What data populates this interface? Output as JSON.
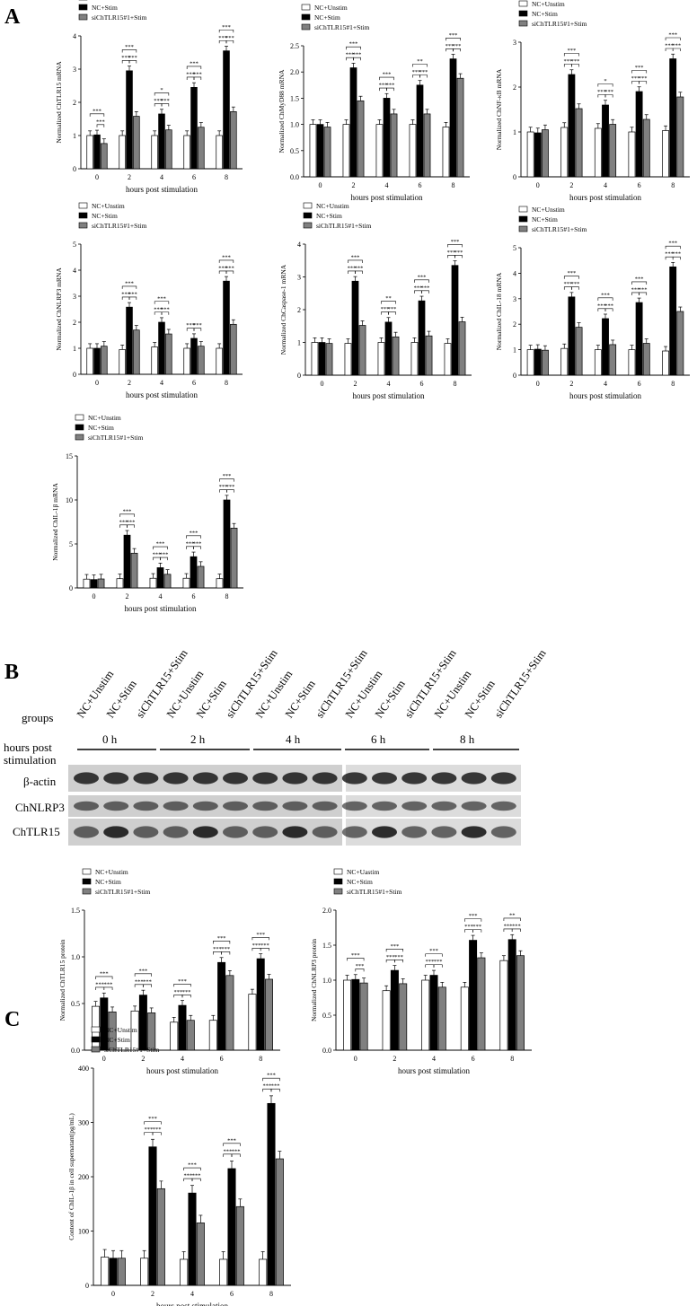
{
  "panels": {
    "a": "A",
    "b": "B",
    "c": "C"
  },
  "legend_labels": [
    "NC+Unstim",
    "NC+Stim",
    "siChTLR15#1+Stim"
  ],
  "colors": {
    "unstim": "#ffffff",
    "stim": "#000000",
    "si": "#808080"
  },
  "chart_data": [
    {
      "type": "bar",
      "ylabel": "Normalized ChTLR15 mRNA",
      "xlabel": "hours post stimulation",
      "categories": [
        "0",
        "2",
        "4",
        "6",
        "8"
      ],
      "ylim": [
        0,
        4
      ],
      "yticks": [
        0,
        1,
        2,
        3,
        4
      ],
      "series": [
        {
          "name": "NC+Unstim",
          "values": [
            1.0,
            1.0,
            1.0,
            1.0,
            1.0
          ]
        },
        {
          "name": "NC+Stim",
          "values": [
            1.02,
            2.95,
            1.65,
            2.45,
            3.55
          ]
        },
        {
          "name": "siChTLR15#1+Stim",
          "values": [
            0.76,
            1.58,
            1.17,
            1.25,
            1.72
          ]
        }
      ],
      "significance": [
        {
          "top": "***",
          "left": "",
          "right": "***"
        },
        {
          "top": "***",
          "left": "***",
          "right": "***"
        },
        {
          "top": "*",
          "left": "***",
          "right": "***"
        },
        {
          "top": "***",
          "left": "***",
          "right": "***"
        },
        {
          "top": "***",
          "left": "***",
          "right": "***"
        }
      ]
    },
    {
      "type": "bar",
      "ylabel": "Normalized ChMyD88 mRNA",
      "xlabel": "hours post stimulation",
      "categories": [
        "0",
        "2",
        "4",
        "6",
        "8"
      ],
      "ylim": [
        0,
        2.5
      ],
      "yticks": [
        0.0,
        0.5,
        1.0,
        1.5,
        2.0,
        2.5
      ],
      "series": [
        {
          "name": "NC+Unstim",
          "values": [
            1.0,
            1.0,
            1.0,
            1.0,
            0.95
          ]
        },
        {
          "name": "NC+Stim",
          "values": [
            1.0,
            2.08,
            1.5,
            1.75,
            2.25
          ]
        },
        {
          "name": "siChTLR15#1+Stim",
          "values": [
            0.95,
            1.45,
            1.2,
            1.2,
            1.88
          ]
        }
      ],
      "significance": [
        {
          "top": "",
          "left": "",
          "right": ""
        },
        {
          "top": "***",
          "left": "***",
          "right": "***"
        },
        {
          "top": "***",
          "left": "***",
          "right": "***"
        },
        {
          "top": "**",
          "left": "***",
          "right": "***"
        },
        {
          "top": "***",
          "left": "***",
          "right": "***"
        }
      ]
    },
    {
      "type": "bar",
      "ylabel": "Normalized ChNF-κB mRNA",
      "xlabel": "hours post stimulation",
      "categories": [
        "0",
        "2",
        "4",
        "6",
        "8"
      ],
      "ylim": [
        0,
        3
      ],
      "yticks": [
        0,
        1,
        2,
        3
      ],
      "series": [
        {
          "name": "NC+Unstim",
          "values": [
            1.0,
            1.1,
            1.08,
            1.0,
            1.03
          ]
        },
        {
          "name": "NC+Stim",
          "values": [
            0.98,
            2.28,
            1.6,
            1.9,
            2.63
          ]
        },
        {
          "name": "siChTLR15#1+Stim",
          "values": [
            1.05,
            1.52,
            1.17,
            1.28,
            1.78
          ]
        }
      ],
      "significance": [
        {
          "top": "",
          "left": "",
          "right": ""
        },
        {
          "top": "***",
          "left": "***",
          "right": "***"
        },
        {
          "top": "*",
          "left": "***",
          "right": "***"
        },
        {
          "top": "***",
          "left": "***",
          "right": "***"
        },
        {
          "top": "***",
          "left": "***",
          "right": "***"
        }
      ]
    },
    {
      "type": "bar",
      "ylabel": "Normalized ChNLRP3 mRNA",
      "xlabel": "hours post stimulation",
      "categories": [
        "0",
        "2",
        "4",
        "6",
        "8"
      ],
      "ylim": [
        0,
        5
      ],
      "yticks": [
        0,
        1,
        2,
        3,
        4,
        5
      ],
      "series": [
        {
          "name": "NC+Unstim",
          "values": [
            1.0,
            0.95,
            1.05,
            1.0,
            1.0
          ]
        },
        {
          "name": "NC+Stim",
          "values": [
            1.0,
            2.58,
            2.0,
            1.38,
            3.58
          ]
        },
        {
          "name": "siChTLR15#1+Stim",
          "values": [
            1.08,
            1.7,
            1.55,
            1.08,
            1.92
          ]
        }
      ],
      "significance": [
        {
          "top": "",
          "left": "",
          "right": ""
        },
        {
          "top": "***",
          "left": "***",
          "right": "***"
        },
        {
          "top": "***",
          "left": "***",
          "right": "***"
        },
        {
          "top": "",
          "left": "***",
          "right": "***"
        },
        {
          "top": "***",
          "left": "***",
          "right": "***"
        }
      ]
    },
    {
      "type": "bar",
      "ylabel": "Normalized ChCaspase-1 mRNA",
      "xlabel": "hours post stimulation",
      "categories": [
        "0",
        "2",
        "4",
        "6",
        "8"
      ],
      "ylim": [
        0,
        4
      ],
      "yticks": [
        0,
        1,
        2,
        3,
        4
      ],
      "series": [
        {
          "name": "NC+Unstim",
          "values": [
            1.0,
            0.97,
            1.0,
            1.0,
            0.97
          ]
        },
        {
          "name": "NC+Stim",
          "values": [
            1.0,
            2.87,
            1.62,
            2.27,
            3.35
          ]
        },
        {
          "name": "siChTLR15#1+Stim",
          "values": [
            0.97,
            1.52,
            1.17,
            1.2,
            1.63
          ]
        }
      ],
      "significance": [
        {
          "top": "",
          "left": "",
          "right": ""
        },
        {
          "top": "***",
          "left": "***",
          "right": "***"
        },
        {
          "top": "**",
          "left": "***",
          "right": "***"
        },
        {
          "top": "***",
          "left": "***",
          "right": "***"
        },
        {
          "top": "***",
          "left": "***",
          "right": "***"
        }
      ]
    },
    {
      "type": "bar",
      "ylabel": "Normalized ChIL-18 mRNA",
      "xlabel": "hours post stimulation",
      "categories": [
        "0",
        "2",
        "4",
        "6",
        "8"
      ],
      "ylim": [
        0,
        5
      ],
      "yticks": [
        0,
        1,
        2,
        3,
        4,
        5
      ],
      "series": [
        {
          "name": "NC+Unstim",
          "values": [
            1.0,
            1.05,
            1.0,
            1.0,
            0.95
          ]
        },
        {
          "name": "NC+Stim",
          "values": [
            1.02,
            3.07,
            2.22,
            2.85,
            4.25
          ]
        },
        {
          "name": "siChTLR15#1+Stim",
          "values": [
            0.98,
            1.88,
            1.2,
            1.25,
            2.5
          ]
        }
      ],
      "significance": [
        {
          "top": "",
          "left": "",
          "right": ""
        },
        {
          "top": "***",
          "left": "***",
          "right": "***"
        },
        {
          "top": "***",
          "left": "***",
          "right": "***"
        },
        {
          "top": "***",
          "left": "***",
          "right": "***"
        },
        {
          "top": "***",
          "left": "***",
          "right": "***"
        }
      ]
    },
    {
      "type": "bar",
      "ylabel": "Normalized ChIL-1β mRNA",
      "xlabel": "hours post stimulation",
      "categories": [
        "0",
        "2",
        "4",
        "6",
        "8"
      ],
      "ylim": [
        0,
        15
      ],
      "yticks": [
        0,
        5,
        10,
        15
      ],
      "series": [
        {
          "name": "NC+Unstim",
          "values": [
            1.0,
            1.05,
            1.1,
            1.1,
            1.05
          ]
        },
        {
          "name": "NC+Stim",
          "values": [
            0.95,
            6.0,
            2.3,
            3.55,
            10.0
          ]
        },
        {
          "name": "siChTLR15#1+Stim",
          "values": [
            1.02,
            3.95,
            1.55,
            2.45,
            6.8
          ]
        }
      ],
      "significance": [
        {
          "top": "",
          "left": "",
          "right": ""
        },
        {
          "top": "***",
          "left": "***",
          "right": "***"
        },
        {
          "top": "***",
          "left": "***",
          "right": "***"
        },
        {
          "top": "***",
          "left": "***",
          "right": "***"
        },
        {
          "top": "***",
          "left": "***",
          "right": "***"
        }
      ]
    },
    {
      "type": "bar",
      "ylabel": "Normalized ChTLR15 protein",
      "xlabel": "hours post stimulation",
      "categories": [
        "0",
        "2",
        "4",
        "6",
        "8"
      ],
      "ylim": [
        0,
        1.5
      ],
      "yticks": [
        0.0,
        0.5,
        1.0,
        1.5
      ],
      "series": [
        {
          "name": "NC+Unstim",
          "values": [
            0.47,
            0.42,
            0.3,
            0.32,
            0.6
          ]
        },
        {
          "name": "NC+Stim",
          "values": [
            0.56,
            0.59,
            0.48,
            0.94,
            0.98
          ]
        },
        {
          "name": "siChTLR15#1+Stim",
          "values": [
            0.41,
            0.4,
            0.32,
            0.8,
            0.76
          ]
        }
      ],
      "significance": [
        {
          "top": "***",
          "left": "***",
          "right": "***"
        },
        {
          "top": "***",
          "left": "***",
          "right": "***"
        },
        {
          "top": "***",
          "left": "***",
          "right": "***"
        },
        {
          "top": "***",
          "left": "***",
          "right": "***"
        },
        {
          "top": "***",
          "left": "***",
          "right": "***"
        }
      ]
    },
    {
      "type": "bar",
      "ylabel": "Normalized ChNLRP3 protein",
      "xlabel": "hours post stimulation",
      "categories": [
        "0",
        "2",
        "4",
        "6",
        "8"
      ],
      "ylim": [
        0,
        2
      ],
      "yticks": [
        0.0,
        0.5,
        1.0,
        1.5,
        2.0
      ],
      "series": [
        {
          "name": "NC+Uastim",
          "values": [
            1.0,
            0.85,
            1.0,
            0.9,
            1.28
          ]
        },
        {
          "name": "NC+Stim",
          "values": [
            1.01,
            1.14,
            1.07,
            1.57,
            1.58
          ]
        },
        {
          "name": "siChTLR15#1+Stim",
          "values": [
            0.96,
            0.95,
            0.9,
            1.32,
            1.35
          ]
        }
      ],
      "significance": [
        {
          "top": "***",
          "left": "",
          "right": "***"
        },
        {
          "top": "***",
          "left": "***",
          "right": "***"
        },
        {
          "top": "***",
          "left": "***",
          "right": "***"
        },
        {
          "top": "***",
          "left": "***",
          "right": "***"
        },
        {
          "top": "**",
          "left": "***",
          "right": "***"
        }
      ]
    },
    {
      "type": "bar",
      "ylabel": "Content of ChIL-1β in cell supernatant(pg/mL)",
      "xlabel": "hours post stimulation",
      "categories": [
        "0",
        "2",
        "4",
        "6",
        "8"
      ],
      "ylim": [
        0,
        400
      ],
      "yticks": [
        0,
        100,
        200,
        300,
        400
      ],
      "series": [
        {
          "name": "NC+Unstim",
          "values": [
            52,
            50,
            48,
            48,
            48
          ]
        },
        {
          "name": "NC+Stim",
          "values": [
            50,
            255,
            170,
            215,
            335
          ]
        },
        {
          "name": "siChTLR15#1+Stim",
          "values": [
            50,
            178,
            115,
            145,
            233
          ]
        }
      ],
      "significance": [
        {
          "top": "",
          "left": "",
          "right": ""
        },
        {
          "top": "***",
          "left": "***",
          "right": "***"
        },
        {
          "top": "***",
          "left": "***",
          "right": "***"
        },
        {
          "top": "***",
          "left": "***",
          "right": "***"
        },
        {
          "top": "***",
          "left": "***",
          "right": "***"
        }
      ]
    }
  ],
  "western": {
    "groups_label": "groups",
    "hours_label_line1": "hours post",
    "hours_label_line2": "stimulation",
    "lanes": [
      "NC+Unstim",
      "NC+Stim",
      "siChTLR15+Stim",
      "NC+Unstim",
      "NC+Stim",
      "siChTLR15+Stim",
      "NC+Unstim",
      "NC+Stim",
      "siChTLR15+Stim",
      "NC+Unstim",
      "NC+Stim",
      "siChTLR15+Stim",
      "NC+Unstim",
      "NC+Stim",
      "siChTLR15+Stim"
    ],
    "timepoints": [
      "0 h",
      "2 h",
      "4 h",
      "6 h",
      "8 h"
    ],
    "bands": [
      "β-actin",
      "ChNLRP3",
      "ChTLR15"
    ]
  }
}
